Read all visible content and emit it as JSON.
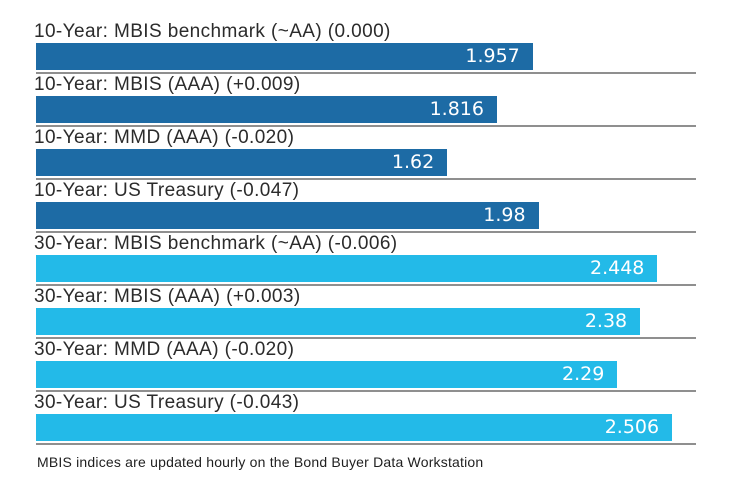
{
  "chart_data": {
    "type": "bar",
    "orientation": "horizontal",
    "title": "",
    "xlabel": "",
    "ylabel": "",
    "xlim": [
      0,
      2.6
    ],
    "grid": "baseline-under-each-bar",
    "legend": "none",
    "rows": [
      {
        "label": "10-Year: MBIS benchmark (~AA) (0.000)",
        "value": 1.957,
        "display": "1.957",
        "series": "10-year"
      },
      {
        "label": "10-Year: MBIS (AAA) (+0.009)",
        "value": 1.816,
        "display": "1.816",
        "series": "10-year"
      },
      {
        "label": "10-Year: MMD (AAA) (-0.020)",
        "value": 1.62,
        "display": "1.62",
        "series": "10-year"
      },
      {
        "label": "10-Year: US Treasury (-0.047)",
        "value": 1.98,
        "display": "1.98",
        "series": "10-year"
      },
      {
        "label": "30-Year: MBIS benchmark (~AA) (-0.006)",
        "value": 2.448,
        "display": "2.448",
        "series": "30-year"
      },
      {
        "label": "30-Year: MBIS (AAA) (+0.003)",
        "value": 2.38,
        "display": "2.38",
        "series": "30-year"
      },
      {
        "label": "30-Year: MMD (AAA) (-0.020)",
        "value": 2.29,
        "display": "2.29",
        "series": "30-year"
      },
      {
        "label": "30-Year: US Treasury (-0.043)",
        "value": 2.506,
        "display": "2.506",
        "series": "30-year"
      }
    ],
    "palette": {
      "10-year": "#1d6ba5",
      "30-year": "#23bae8"
    }
  },
  "footer": {
    "note": "MBIS indices are updated hourly on the Bond Buyer Data Workstation"
  },
  "colors": {
    "background": "#ffffff",
    "label_text": "#2b2b2b",
    "value_text": "#ffffff",
    "baseline": "#8f8f8f"
  }
}
